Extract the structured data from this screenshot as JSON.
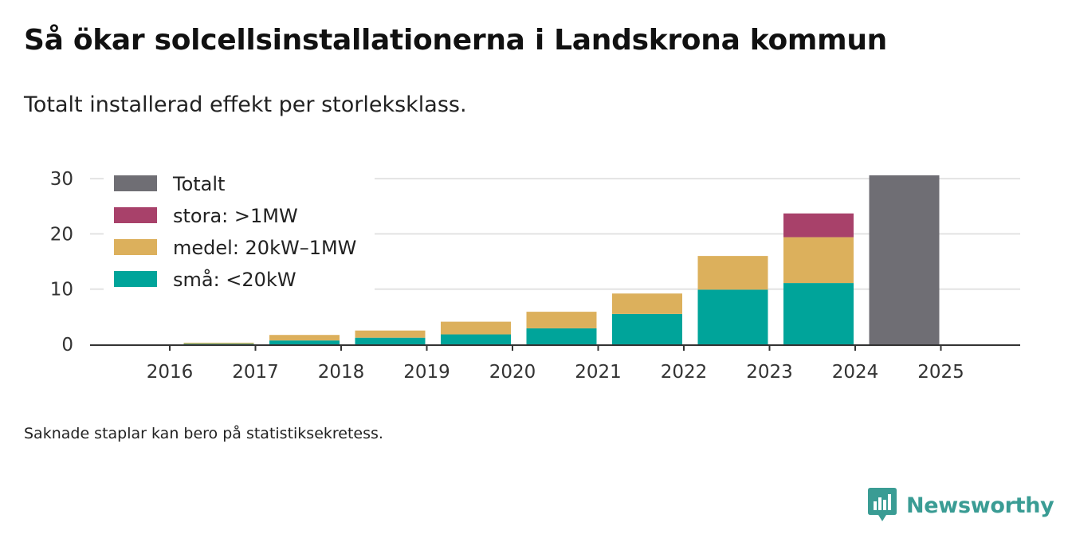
{
  "header": {
    "title": "Så ökar solcellsinstallationerna i Landskrona kommun",
    "subtitle": "Totalt installerad effekt per storleksklass."
  },
  "footnote": "Saknade staplar kan bero på statistiksekretess.",
  "brand": {
    "name": "Newsworthy",
    "color": "#3a9c94"
  },
  "chart_data": {
    "type": "bar",
    "stacked": true,
    "title": "Så ökar solcellsinstallationerna i Landskrona kommun",
    "subtitle": "Totalt installerad effekt per storleksklass.",
    "xlabel": "",
    "ylabel": "",
    "ylim": [
      0,
      31
    ],
    "yticks": [
      0,
      10,
      20,
      30
    ],
    "grid": true,
    "legend_position": "top-left",
    "categories": [
      "2016",
      "2017",
      "2018",
      "2019",
      "2020",
      "2021",
      "2022",
      "2023",
      "2024",
      "2025"
    ],
    "series": [
      {
        "name": "små: <20kW",
        "color": "#00a49a",
        "values": [
          0,
          0.1,
          0.7,
          1.2,
          1.8,
          2.9,
          5.5,
          9.9,
          11.1,
          null
        ]
      },
      {
        "name": "medel: 20kW–1MW",
        "color": "#dcb05c",
        "values": [
          0,
          0.2,
          1.0,
          1.3,
          2.3,
          3.0,
          3.7,
          6.1,
          8.3,
          null
        ]
      },
      {
        "name": "stora: >1MW",
        "color": "#a8416a",
        "values": [
          0,
          0,
          0,
          0,
          0,
          0,
          0,
          0,
          4.3,
          null
        ]
      },
      {
        "name": "Totalt",
        "color": "#6f6e74",
        "values": [
          null,
          null,
          null,
          null,
          null,
          null,
          null,
          null,
          null,
          30.6
        ]
      }
    ],
    "legend_order": [
      "Totalt",
      "stora: >1MW",
      "medel: 20kW–1MW",
      "små: <20kW"
    ]
  }
}
